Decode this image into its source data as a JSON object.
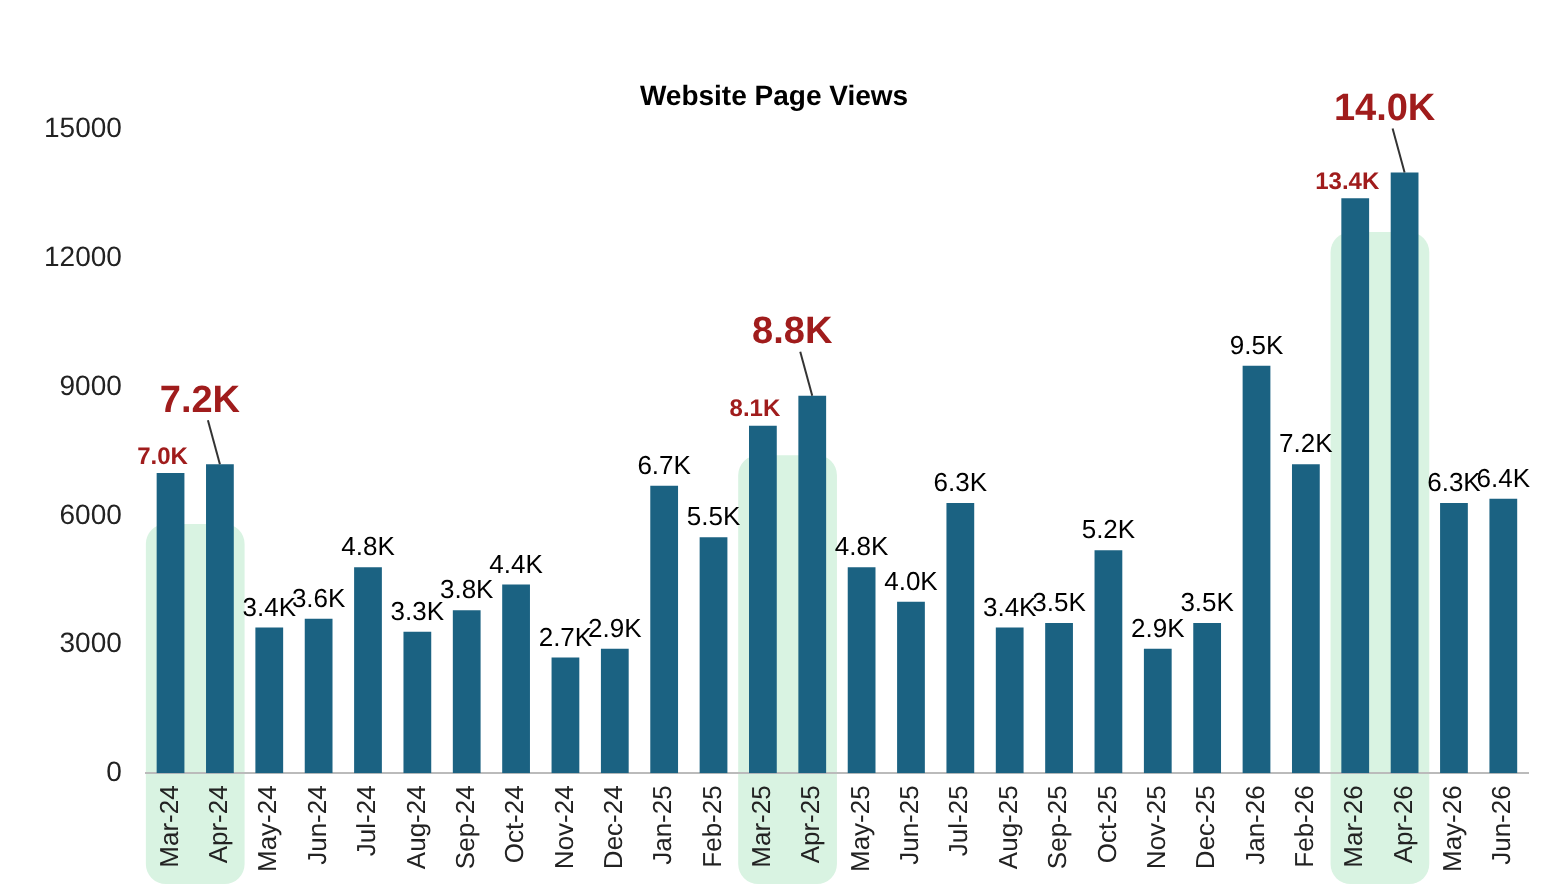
{
  "chart_data": {
    "type": "bar",
    "title": "Website Page Views",
    "categories": [
      "Mar-24",
      "Apr-24",
      "May-24",
      "Jun-24",
      "Jul-24",
      "Aug-24",
      "Sep-24",
      "Oct-24",
      "Nov-24",
      "Dec-24",
      "Jan-25",
      "Feb-25",
      "Mar-25",
      "Apr-25",
      "May-25",
      "Jun-25",
      "Jul-25",
      "Aug-25",
      "Sep-25",
      "Oct-25",
      "Nov-25",
      "Dec-25",
      "Jan-26",
      "Feb-26",
      "Mar-26",
      "Apr-26",
      "May-26",
      "Jun-26"
    ],
    "values": [
      7000,
      7200,
      3400,
      3600,
      4800,
      3300,
      3800,
      4400,
      2700,
      2900,
      6700,
      5500,
      8100,
      8800,
      4800,
      4000,
      6300,
      3400,
      3500,
      5200,
      2900,
      3500,
      9500,
      7200,
      13400,
      14000,
      6300,
      6400
    ],
    "value_labels": [
      "7.0K",
      "7.2K",
      "3.4K",
      "3.6K",
      "4.8K",
      "3.3K",
      "3.8K",
      "4.4K",
      "2.7K",
      "2.9K",
      "6.7K",
      "5.5K",
      "8.1K",
      "8.8K",
      "4.8K",
      "4.0K",
      "6.3K",
      "3.4K",
      "3.5K",
      "5.2K",
      "2.9K",
      "3.5K",
      "9.5K",
      "7.2K",
      "13.4K",
      "14.0K",
      "6.3K",
      "6.4K"
    ],
    "color": "#1b6282",
    "ylim": [
      0,
      15000
    ],
    "yticks": [
      0,
      3000,
      6000,
      9000,
      12000,
      15000
    ],
    "grid": false,
    "legend": false,
    "bands": [
      {
        "axis": "x",
        "from": "Mar-24",
        "to": "Apr-24",
        "color": "#d9f3e2"
      },
      {
        "axis": "x",
        "from": "Mar-25",
        "to": "Apr-25",
        "color": "#d9f3e2"
      },
      {
        "axis": "x",
        "from": "Mar-26",
        "to": "Apr-26",
        "color": "#d9f3e2"
      }
    ]
  }
}
